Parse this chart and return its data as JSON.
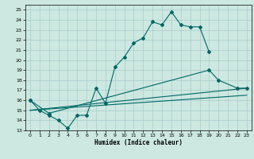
{
  "title": "",
  "xlabel": "Humidex (Indice chaleur)",
  "background_color": "#cce8e0",
  "grid_color": "#aacccc",
  "line_color": "#006666",
  "xlim": [
    -0.5,
    23.5
  ],
  "ylim": [
    13,
    25.5
  ],
  "xticks": [
    0,
    1,
    2,
    3,
    4,
    5,
    6,
    7,
    8,
    9,
    10,
    11,
    12,
    13,
    14,
    15,
    16,
    17,
    18,
    19,
    20,
    21,
    22,
    23
  ],
  "yticks": [
    13,
    14,
    15,
    16,
    17,
    18,
    19,
    20,
    21,
    22,
    23,
    24,
    25
  ],
  "line1_x": [
    0,
    1,
    2,
    3,
    4,
    5,
    6,
    7,
    8,
    9,
    10,
    11,
    12,
    13,
    14,
    15,
    16,
    17,
    18,
    19
  ],
  "line1_y": [
    16,
    15,
    14.5,
    14,
    13.2,
    14.5,
    14.5,
    17.2,
    15.7,
    19.3,
    20.3,
    21.7,
    22.2,
    23.8,
    23.5,
    24.8,
    23.5,
    23.3,
    23.3,
    20.8
  ],
  "line2_x": [
    0,
    2,
    19,
    20,
    22,
    23
  ],
  "line2_y": [
    16,
    14.7,
    19.0,
    18.0,
    17.2,
    17.2
  ],
  "line3_x": [
    0,
    23
  ],
  "line3_y": [
    15.0,
    17.2
  ],
  "line4_x": [
    0,
    23
  ],
  "line4_y": [
    15.0,
    16.5
  ]
}
